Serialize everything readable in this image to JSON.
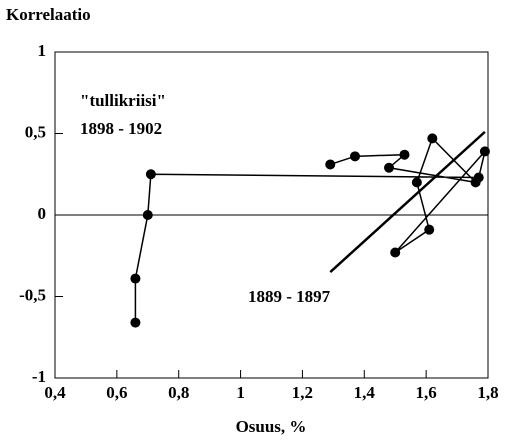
{
  "chart_data": {
    "type": "line",
    "ylabel": "Korrelaatio",
    "xlabel": "Osuus, %",
    "annotations": [
      "\"tullikriisi\"",
      "1898 - 1902",
      "1889 - 1897"
    ],
    "xlim": [
      0.4,
      1.8
    ],
    "xticks": [
      {
        "value": 0.4,
        "label": "0,4"
      },
      {
        "value": 0.6,
        "label": "0,6"
      },
      {
        "value": 0.8,
        "label": "0,8"
      },
      1,
      {
        "value": 1.2,
        "label": "1,2"
      },
      {
        "value": 1.4,
        "label": "1,4"
      },
      {
        "value": 1.6,
        "label": "1,6"
      },
      {
        "value": 1.8,
        "label": "1,8"
      }
    ],
    "ylim": [
      -1,
      1
    ],
    "yticks": [
      -1,
      {
        "value": -0.5,
        "label": "-0,5"
      },
      0,
      {
        "value": 0.5,
        "label": "0,5"
      },
      1
    ],
    "zero_line": true,
    "series": [
      {
        "color": "#000000",
        "markers": true,
        "x": [
          1.29,
          1.37,
          1.53,
          1.48,
          1.76,
          1.62,
          1.57,
          1.61,
          1.5,
          1.79,
          1.77,
          0.71,
          0.7,
          0.66,
          0.66
        ],
        "values": [
          0.31,
          0.36,
          0.37,
          0.29,
          0.2,
          0.47,
          0.2,
          -0.09,
          -0.23,
          0.39,
          0.23,
          0.25,
          0.0,
          -0.39,
          -0.66
        ]
      },
      {
        "color": "#000000",
        "markers": false,
        "x": [
          1.29,
          1.79
        ],
        "values": [
          -0.35,
          0.51
        ]
      }
    ]
  }
}
